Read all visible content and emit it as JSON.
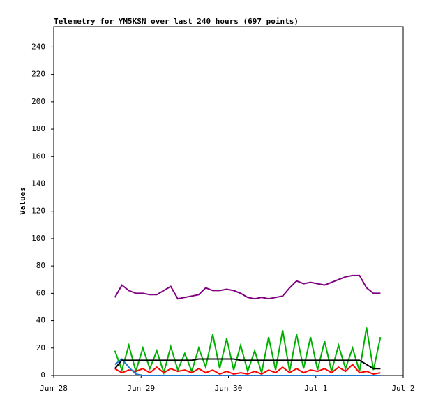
{
  "chart_data": {
    "type": "line",
    "title": "Telemetry for YM5KSN over last 240 hours (697 points)",
    "y_label": "Values",
    "xlim": [
      0,
      4
    ],
    "xticks": [
      {
        "value": 0,
        "label": "Jun 28"
      },
      {
        "value": 1,
        "label": "Jun 29"
      },
      {
        "value": 2,
        "label": "Jun 30"
      },
      {
        "value": 3,
        "label": "Jul 1"
      },
      {
        "value": 4,
        "label": "Jul 2"
      }
    ],
    "ylim": [
      0,
      255
    ],
    "yticks": [
      0,
      20,
      40,
      60,
      80,
      100,
      120,
      140,
      160,
      180,
      200,
      220,
      240
    ],
    "x": [
      0.7,
      0.78,
      0.86,
      0.94,
      1.02,
      1.1,
      1.18,
      1.26,
      1.34,
      1.42,
      1.5,
      1.58,
      1.66,
      1.74,
      1.82,
      1.9,
      1.98,
      2.06,
      2.14,
      2.22,
      2.3,
      2.38,
      2.46,
      2.54,
      2.62,
      2.7,
      2.78,
      2.86,
      2.94,
      3.02,
      3.1,
      3.18,
      3.26,
      3.34,
      3.42,
      3.5,
      3.58,
      3.66,
      3.74
    ],
    "series": [
      {
        "color": "#00b000",
        "values": [
          18,
          4,
          22,
          3,
          20,
          5,
          18,
          2,
          21,
          4,
          16,
          3,
          20,
          6,
          30,
          5,
          27,
          4,
          22,
          3,
          18,
          2,
          28,
          4,
          33,
          3,
          30,
          5,
          28,
          4,
          25,
          3,
          22,
          5,
          20,
          3,
          35,
          4,
          28
        ]
      },
      {
        "color": "#ff0000",
        "values": [
          5,
          2,
          4,
          3,
          5,
          2,
          6,
          2,
          5,
          3,
          4,
          2,
          5,
          2,
          4,
          1,
          3,
          1,
          2,
          1,
          3,
          1,
          4,
          2,
          6,
          2,
          5,
          2,
          4,
          3,
          5,
          2,
          6,
          3,
          8,
          2,
          3,
          1,
          2
        ]
      },
      {
        "color": "#1e78d0",
        "values": [
          8,
          12,
          6,
          1,
          0,
          0,
          0,
          0,
          0,
          0,
          0,
          0,
          0,
          0,
          0,
          0,
          0,
          0,
          0,
          0,
          0,
          0,
          0,
          0,
          0,
          0,
          0,
          0,
          0,
          0,
          0,
          0,
          0,
          0,
          0,
          0,
          0,
          0,
          0
        ]
      },
      {
        "color": "#000000",
        "values": [
          5,
          11,
          11,
          11,
          11,
          11,
          11,
          11,
          11,
          11,
          11,
          11,
          12,
          12,
          12,
          12,
          12,
          12,
          11,
          11,
          11,
          11,
          11,
          11,
          11,
          11,
          11,
          11,
          11,
          11,
          11,
          11,
          11,
          11,
          11,
          11,
          8,
          5,
          5
        ]
      },
      {
        "color": "#800080",
        "values": [
          57,
          66,
          62,
          60,
          60,
          59,
          59,
          62,
          65,
          56,
          57,
          58,
          59,
          64,
          62,
          62,
          63,
          62,
          60,
          57,
          56,
          57,
          56,
          57,
          58,
          64,
          69,
          67,
          68,
          67,
          66,
          68,
          70,
          72,
          73,
          73,
          64,
          60,
          60
        ]
      }
    ]
  }
}
